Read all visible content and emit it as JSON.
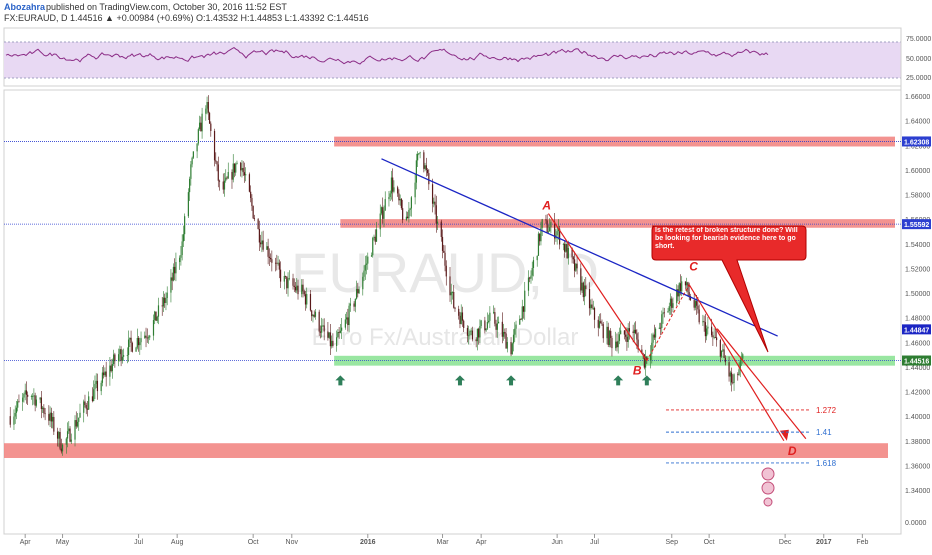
{
  "header": {
    "author": "Abozahra",
    "published": "published on TradingView.com, October 30, 2016 11:52 EST",
    "ohlc_line": "FX:EURAUD, D 1.44516 ▲ +0.00984 (+0.69%) O:1.43532 H:1.44853 L:1.43392 C:1.44516"
  },
  "watermark": {
    "symbol": "EURAUD, D",
    "name": "Euro Fx/Australian Dollar"
  },
  "colors": {
    "rsi_line": "#8b2c86",
    "rsi_band": "#e8d9f3",
    "resistance_zone": "#f1807d",
    "support_zone": "#7fe08a",
    "trendline": "#1b25c4",
    "drawing_red": "#e02020",
    "arrow_green": "#2f7f5a",
    "fib_blue": "#2f6fd0",
    "bull_candle": "#2e7d32",
    "bear_candle": "#5a1a1a"
  },
  "rsi": {
    "ticks": [
      "75.0000",
      "50.0000",
      "25.0000"
    ]
  },
  "price_axis": {
    "ticks": [
      "1.66000",
      "1.64000",
      "1.62000",
      "1.60000",
      "1.58000",
      "1.56000",
      "1.54000",
      "1.52000",
      "1.50000",
      "1.48000",
      "1.46000",
      "1.44000",
      "1.42000",
      "1.40000",
      "1.38000",
      "1.36000",
      "1.34000",
      "0.0000"
    ],
    "level_labels": {
      "top_resistance": "1.62308",
      "mid_resistance": "1.55592",
      "trend_value": "1.44847",
      "current": "1.44516"
    }
  },
  "time_axis": {
    "ticks": [
      "Apr",
      "May",
      "Jul",
      "Aug",
      "Oct",
      "Nov",
      "2016",
      "Mar",
      "Apr",
      "Jun",
      "Jul",
      "Sep",
      "Oct",
      "Dec",
      "2017",
      "Feb"
    ]
  },
  "annotations": {
    "wave_a": "A",
    "wave_b": "B",
    "wave_c": "C",
    "wave_d": "D",
    "fib_1": "1.272",
    "fib_2": "1.41",
    "fib_3": "1.618",
    "callout": "Is the retest of broken structure done? Will be looking for bearish evidence here to go short."
  },
  "chart_data": {
    "type": "candlestick",
    "symbol": "FX:EURAUD",
    "timeframe": "D",
    "title": "Euro Fx/Australian Dollar",
    "ylim": [
      1.33,
      1.665
    ],
    "x_range": [
      "2015-03",
      "2017-02"
    ],
    "last": {
      "open": 1.43532,
      "high": 1.44853,
      "low": 1.43392,
      "close": 1.44516
    },
    "price_path": [
      {
        "date": "2015-03-20",
        "value": 1.4
      },
      {
        "date": "2015-04-05",
        "value": 1.42
      },
      {
        "date": "2015-04-20",
        "value": 1.4
      },
      {
        "date": "2015-05-01",
        "value": 1.375
      },
      {
        "date": "2015-05-20",
        "value": 1.41
      },
      {
        "date": "2015-06-15",
        "value": 1.45
      },
      {
        "date": "2015-07-10",
        "value": 1.47
      },
      {
        "date": "2015-07-25",
        "value": 1.5
      },
      {
        "date": "2015-08-05",
        "value": 1.54
      },
      {
        "date": "2015-08-12",
        "value": 1.6
      },
      {
        "date": "2015-08-24",
        "value": 1.655
      },
      {
        "date": "2015-09-05",
        "value": 1.58
      },
      {
        "date": "2015-09-20",
        "value": 1.61
      },
      {
        "date": "2015-10-05",
        "value": 1.55
      },
      {
        "date": "2015-10-25",
        "value": 1.51
      },
      {
        "date": "2015-11-10",
        "value": 1.5
      },
      {
        "date": "2015-11-25",
        "value": 1.47
      },
      {
        "date": "2015-12-05",
        "value": 1.455
      },
      {
        "date": "2015-12-20",
        "value": 1.49
      },
      {
        "date": "2016-01-05",
        "value": 1.54
      },
      {
        "date": "2016-01-20",
        "value": 1.59
      },
      {
        "date": "2016-02-01",
        "value": 1.555
      },
      {
        "date": "2016-02-12",
        "value": 1.62
      },
      {
        "date": "2016-02-25",
        "value": 1.56
      },
      {
        "date": "2016-03-10",
        "value": 1.49
      },
      {
        "date": "2016-03-25",
        "value": 1.465
      },
      {
        "date": "2016-04-10",
        "value": 1.48
      },
      {
        "date": "2016-04-25",
        "value": 1.455
      },
      {
        "date": "2016-05-10",
        "value": 1.51
      },
      {
        "date": "2016-05-20",
        "value": 1.555
      },
      {
        "date": "2016-06-01",
        "value": 1.55
      },
      {
        "date": "2016-06-15",
        "value": 1.52
      },
      {
        "date": "2016-07-01",
        "value": 1.48
      },
      {
        "date": "2016-07-15",
        "value": 1.46
      },
      {
        "date": "2016-08-01",
        "value": 1.47
      },
      {
        "date": "2016-08-10",
        "value": 1.445
      },
      {
        "date": "2016-08-25",
        "value": 1.48
      },
      {
        "date": "2016-09-10",
        "value": 1.51
      },
      {
        "date": "2016-09-25",
        "value": 1.475
      },
      {
        "date": "2016-10-10",
        "value": 1.455
      },
      {
        "date": "2016-10-20",
        "value": 1.425
      },
      {
        "date": "2016-10-28",
        "value": 1.445
      }
    ],
    "levels": [
      {
        "price": 1.62308,
        "label": "1.62308",
        "kind": "resistance"
      },
      {
        "price": 1.55592,
        "label": "1.55592",
        "kind": "resistance"
      },
      {
        "price": 1.44516,
        "label": "1.44516",
        "kind": "support"
      }
    ],
    "zones": [
      {
        "from": 1.619,
        "to": 1.627,
        "start": "2015-12-05",
        "kind": "resistance"
      },
      {
        "from": 1.553,
        "to": 1.56,
        "start": "2015-12-10",
        "kind": "resistance"
      },
      {
        "from": 1.441,
        "to": 1.449,
        "start": "2015-12-05",
        "kind": "support"
      },
      {
        "from": 1.366,
        "to": 1.378,
        "start": "2015-03-15",
        "kind": "demand"
      }
    ],
    "support_touches": [
      "2015-12-10",
      "2016-03-15",
      "2016-04-25",
      "2016-07-20",
      "2016-08-12"
    ],
    "trendline": {
      "from": {
        "date": "2016-01-12",
        "price": 1.609
      },
      "to": {
        "date": "2016-11-25",
        "price": 1.465
      }
    },
    "waves": [
      {
        "label": "A",
        "date": "2016-05-25",
        "price": 1.558
      },
      {
        "label": "B",
        "date": "2016-08-12",
        "price": 1.445
      },
      {
        "label": "C",
        "date": "2016-09-15",
        "price": 1.51
      },
      {
        "label": "D",
        "date": "2016-11-30",
        "price": 1.38
      }
    ],
    "fib_levels": [
      {
        "label": "1.272",
        "price": 1.405
      },
      {
        "label": "1.41",
        "price": 1.387
      },
      {
        "label": "1.618",
        "price": 1.362
      }
    ]
  }
}
